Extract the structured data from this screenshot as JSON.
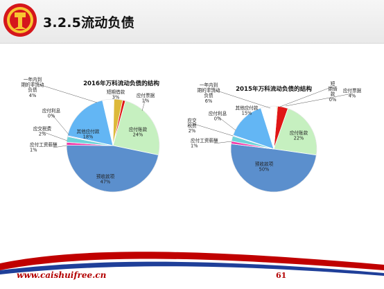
{
  "slide": {
    "title": "3.2.5流动负债",
    "footer_url": "www.caishuifree.cn",
    "page_number": "61"
  },
  "logo": {
    "icon": "dollar-fortune-logo-icon"
  },
  "colors": {
    "accounts_payable": "#c6f0c0",
    "advances_received": "#5b8fcd",
    "salaries_payable": "#f13aa8",
    "taxes_payable": "#6fd3d9",
    "interest_payable": "#b9a3e6",
    "other_payables": "#63b6f4",
    "noncurrent_due": "#ffffff",
    "short_term_loans": "#ddb93a",
    "notes_payable": "#e01616",
    "footer_red": "#c00000",
    "footer_blue": "#1f3f99"
  },
  "chart_data": [
    {
      "type": "pie",
      "title": "2016年万科流动负债的结构",
      "slices": [
        {
          "key": "notes_payable",
          "label_lines": [
            "应付票据",
            "1%"
          ],
          "value": 1
        },
        {
          "key": "accounts_payable",
          "label_lines": [
            "应付账款",
            "24%"
          ],
          "value": 24
        },
        {
          "key": "advances_received",
          "label_lines": [
            "预收款项",
            "47%"
          ],
          "value": 47
        },
        {
          "key": "salaries_payable",
          "label_lines": [
            "应付工资薪酬",
            "1%"
          ],
          "value": 1
        },
        {
          "key": "taxes_payable",
          "label_lines": [
            "应交税费",
            "2%"
          ],
          "value": 2
        },
        {
          "key": "interest_payable",
          "label_lines": [
            "应付利息",
            "0%"
          ],
          "value": 0.3
        },
        {
          "key": "other_payables",
          "label_lines": [
            "其他应付款",
            "18%"
          ],
          "value": 18
        },
        {
          "key": "noncurrent_due",
          "label_lines": [
            "一年内到",
            "期的非流动",
            "负债",
            "4%"
          ],
          "value": 4
        },
        {
          "key": "short_term_loans",
          "label_lines": [
            "短期借款",
            "3%"
          ],
          "value": 3
        }
      ]
    },
    {
      "type": "pie",
      "title": "2015年万科流动负债的结构",
      "slices": [
        {
          "key": "notes_payable",
          "label_lines": [
            "应付票据",
            "4%"
          ],
          "value": 4
        },
        {
          "key": "accounts_payable",
          "label_lines": [
            "应付账款",
            "22%"
          ],
          "value": 22
        },
        {
          "key": "advances_received",
          "label_lines": [
            "预收款项",
            "50%"
          ],
          "value": 50
        },
        {
          "key": "salaries_payable",
          "label_lines": [
            "应付工资薪酬",
            "1%"
          ],
          "value": 1
        },
        {
          "key": "taxes_payable",
          "label_lines": [
            "应交",
            "税费",
            "2%"
          ],
          "value": 2
        },
        {
          "key": "interest_payable",
          "label_lines": [
            "应付利息",
            "0%"
          ],
          "value": 0.3
        },
        {
          "key": "other_payables",
          "label_lines": [
            "其他应付款",
            "15%"
          ],
          "value": 15
        },
        {
          "key": "noncurrent_due",
          "label_lines": [
            "一年内到",
            "期的非流动",
            "负债",
            "6%"
          ],
          "value": 6
        },
        {
          "key": "short_term_loans",
          "label_lines": [
            "短",
            "期借",
            "款",
            "0%"
          ],
          "value": 0.3
        }
      ]
    }
  ]
}
